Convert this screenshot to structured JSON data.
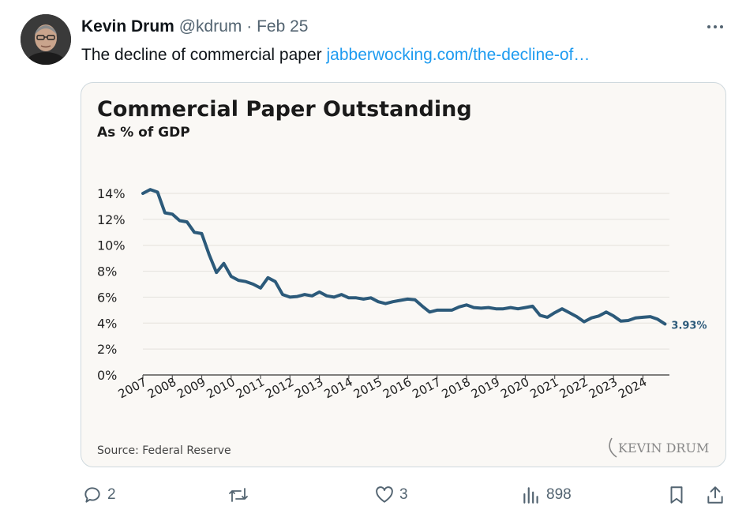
{
  "post": {
    "author_name": "Kevin Drum",
    "handle": "@kdrum",
    "separator": "·",
    "date": "Feb 25",
    "text": "The decline of commercial paper",
    "link_text": "jabberwocking.com/the-decline-of…",
    "more_icon": "more-dots-icon"
  },
  "chart_card": {
    "source": "Source: Federal Reserve",
    "watermark": "KEVIN DRUM",
    "last_value_label": "3.93%"
  },
  "chart_data": {
    "type": "line",
    "title": "Commercial Paper Outstanding",
    "subtitle": "As % of GDP",
    "xlabel": "",
    "ylabel": "",
    "xlim": [
      2007,
      2024.9
    ],
    "ylim": [
      0,
      14
    ],
    "y_ticks": [
      "0%",
      "2%",
      "4%",
      "6%",
      "8%",
      "10%",
      "12%",
      "14%"
    ],
    "x_tick_labels": [
      "2007",
      "2008",
      "2009",
      "2010",
      "2011",
      "2012",
      "2013",
      "2014",
      "2015",
      "2016",
      "2017",
      "2018",
      "2019",
      "2020",
      "2021",
      "2022",
      "2023",
      "2024"
    ],
    "grid": true,
    "line_color": "#2c5a7a",
    "series": [
      {
        "x": [
          2007.0,
          2007.25,
          2007.5,
          2007.75,
          2008.0,
          2008.25,
          2008.5,
          2008.75,
          2009.0,
          2009.25,
          2009.5,
          2009.75,
          2010.0,
          2010.25,
          2010.5,
          2010.75,
          2011.0,
          2011.25,
          2011.5,
          2011.75,
          2012.0,
          2012.25,
          2012.5,
          2012.75,
          2013.0,
          2013.25,
          2013.5,
          2013.75,
          2014.0,
          2014.25,
          2014.5,
          2014.75,
          2015.0,
          2015.25,
          2015.5,
          2015.75,
          2016.0,
          2016.25,
          2016.5,
          2016.75,
          2017.0,
          2017.25,
          2017.5,
          2017.75,
          2018.0,
          2018.25,
          2018.5,
          2018.75,
          2019.0,
          2019.25,
          2019.5,
          2019.75,
          2020.0,
          2020.25,
          2020.5,
          2020.75,
          2021.0,
          2021.25,
          2021.5,
          2021.75,
          2022.0,
          2022.25,
          2022.5,
          2022.75,
          2023.0,
          2023.25,
          2023.5,
          2023.75,
          2024.0,
          2024.25,
          2024.5,
          2024.75
        ],
        "y": [
          14.0,
          14.3,
          14.1,
          12.5,
          12.4,
          11.9,
          11.8,
          11.0,
          10.9,
          9.3,
          7.9,
          8.6,
          7.6,
          7.3,
          7.2,
          7.0,
          6.7,
          7.5,
          7.2,
          6.2,
          6.0,
          6.05,
          6.2,
          6.1,
          6.4,
          6.1,
          6.0,
          6.2,
          5.95,
          5.95,
          5.85,
          5.95,
          5.65,
          5.5,
          5.65,
          5.75,
          5.85,
          5.8,
          5.3,
          4.85,
          5.0,
          5.0,
          5.0,
          5.25,
          5.4,
          5.2,
          5.15,
          5.2,
          5.1,
          5.1,
          5.2,
          5.1,
          5.2,
          5.3,
          4.6,
          4.45,
          4.8,
          5.1,
          4.8,
          4.5,
          4.1,
          4.4,
          4.55,
          4.85,
          4.55,
          4.15,
          4.2,
          4.4,
          4.45,
          4.5,
          4.3,
          3.93
        ]
      }
    ]
  },
  "actions": {
    "reply": {
      "icon": "reply-icon",
      "count": "2"
    },
    "repost": {
      "icon": "repost-icon",
      "count": ""
    },
    "like": {
      "icon": "heart-icon",
      "count": "3"
    },
    "views": {
      "icon": "views-chart-icon",
      "count": "898"
    },
    "bookmark": {
      "icon": "bookmark-icon"
    },
    "share": {
      "icon": "share-icon"
    }
  }
}
